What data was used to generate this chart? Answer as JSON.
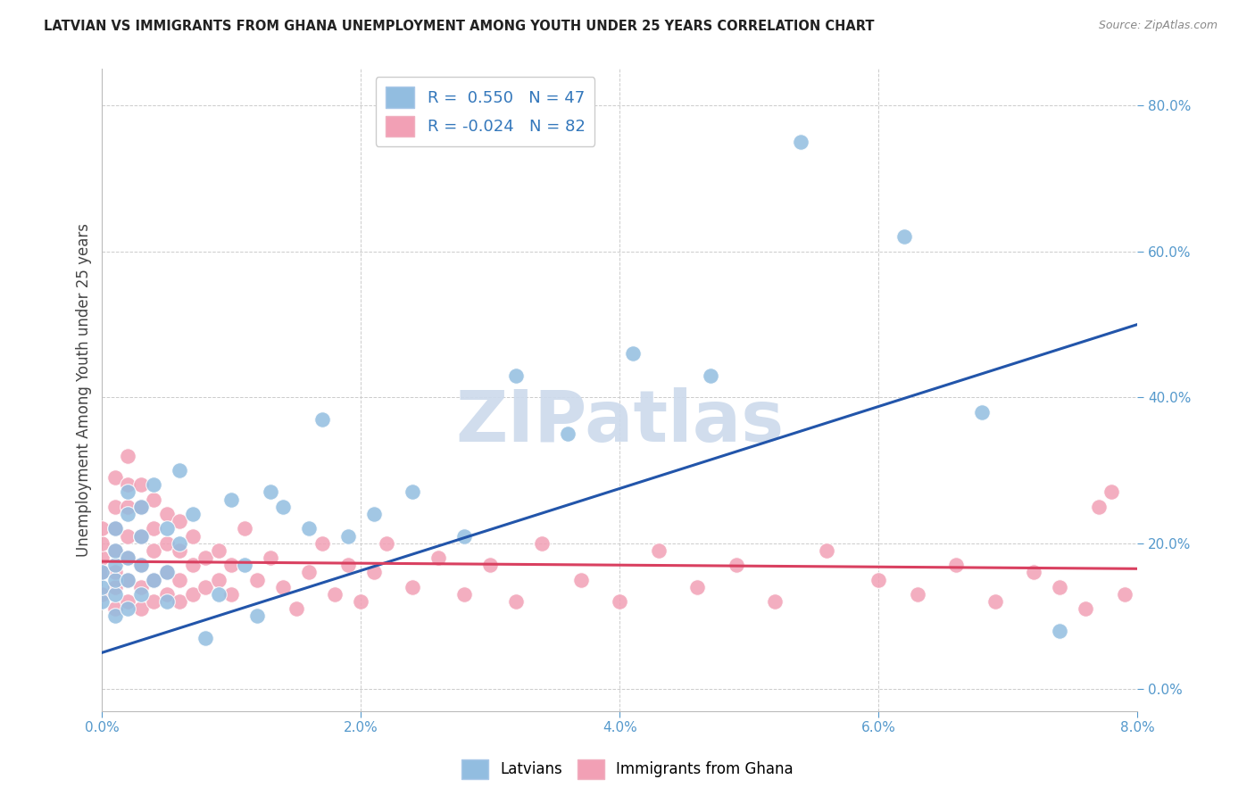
{
  "title": "LATVIAN VS IMMIGRANTS FROM GHANA UNEMPLOYMENT AMONG YOUTH UNDER 25 YEARS CORRELATION CHART",
  "source": "Source: ZipAtlas.com",
  "ylabel": "Unemployment Among Youth under 25 years",
  "legend_latvian": "Latvians",
  "legend_ghana": "Immigrants from Ghana",
  "R_latvian": 0.55,
  "N_latvian": 47,
  "R_ghana": -0.024,
  "N_ghana": 82,
  "color_latvian": "#92bde0",
  "color_ghana": "#f2a0b5",
  "color_line_latvian": "#2255aa",
  "color_line_ghana": "#d94060",
  "watermark_color": "#ccdaec",
  "xmin": 0.0,
  "xmax": 0.08,
  "ymin": -0.03,
  "ymax": 0.85,
  "xticks": [
    0.0,
    0.02,
    0.04,
    0.06,
    0.08
  ],
  "yticks": [
    0.0,
    0.2,
    0.4,
    0.6,
    0.8
  ],
  "grid_color": "#cccccc",
  "spine_color": "#bbbbbb",
  "tick_color": "#5599cc",
  "title_color": "#222222",
  "source_color": "#888888",
  "ylabel_color": "#444444",
  "line_ystart_latvian": 0.05,
  "line_yend_latvian": 0.5,
  "line_ystart_ghana": 0.175,
  "line_yend_ghana": 0.165,
  "latvian_x": [
    0.0,
    0.0,
    0.0,
    0.001,
    0.001,
    0.001,
    0.001,
    0.001,
    0.001,
    0.002,
    0.002,
    0.002,
    0.002,
    0.002,
    0.003,
    0.003,
    0.003,
    0.003,
    0.004,
    0.004,
    0.005,
    0.005,
    0.005,
    0.006,
    0.006,
    0.007,
    0.008,
    0.009,
    0.01,
    0.011,
    0.012,
    0.013,
    0.014,
    0.016,
    0.017,
    0.019,
    0.021,
    0.024,
    0.028,
    0.032,
    0.036,
    0.041,
    0.047,
    0.054,
    0.062,
    0.068,
    0.074
  ],
  "latvian_y": [
    0.12,
    0.14,
    0.16,
    0.1,
    0.13,
    0.15,
    0.17,
    0.19,
    0.22,
    0.11,
    0.15,
    0.18,
    0.24,
    0.27,
    0.13,
    0.17,
    0.21,
    0.25,
    0.15,
    0.28,
    0.12,
    0.16,
    0.22,
    0.2,
    0.3,
    0.24,
    0.07,
    0.13,
    0.26,
    0.17,
    0.1,
    0.27,
    0.25,
    0.22,
    0.37,
    0.21,
    0.24,
    0.27,
    0.21,
    0.43,
    0.35,
    0.46,
    0.43,
    0.75,
    0.62,
    0.38,
    0.08
  ],
  "ghana_x": [
    0.0,
    0.0,
    0.0,
    0.0,
    0.0,
    0.001,
    0.001,
    0.001,
    0.001,
    0.001,
    0.001,
    0.001,
    0.002,
    0.002,
    0.002,
    0.002,
    0.002,
    0.002,
    0.002,
    0.003,
    0.003,
    0.003,
    0.003,
    0.003,
    0.003,
    0.004,
    0.004,
    0.004,
    0.004,
    0.004,
    0.005,
    0.005,
    0.005,
    0.005,
    0.006,
    0.006,
    0.006,
    0.006,
    0.007,
    0.007,
    0.007,
    0.008,
    0.008,
    0.009,
    0.009,
    0.01,
    0.01,
    0.011,
    0.012,
    0.013,
    0.014,
    0.015,
    0.016,
    0.017,
    0.018,
    0.019,
    0.02,
    0.021,
    0.022,
    0.024,
    0.026,
    0.028,
    0.03,
    0.032,
    0.034,
    0.037,
    0.04,
    0.043,
    0.046,
    0.049,
    0.052,
    0.056,
    0.06,
    0.063,
    0.066,
    0.069,
    0.072,
    0.074,
    0.076,
    0.077,
    0.078,
    0.079
  ],
  "ghana_y": [
    0.13,
    0.16,
    0.18,
    0.2,
    0.22,
    0.11,
    0.14,
    0.16,
    0.19,
    0.22,
    0.25,
    0.29,
    0.12,
    0.15,
    0.18,
    0.21,
    0.25,
    0.28,
    0.32,
    0.11,
    0.14,
    0.17,
    0.21,
    0.25,
    0.28,
    0.12,
    0.15,
    0.19,
    0.22,
    0.26,
    0.13,
    0.16,
    0.2,
    0.24,
    0.12,
    0.15,
    0.19,
    0.23,
    0.13,
    0.17,
    0.21,
    0.14,
    0.18,
    0.15,
    0.19,
    0.13,
    0.17,
    0.22,
    0.15,
    0.18,
    0.14,
    0.11,
    0.16,
    0.2,
    0.13,
    0.17,
    0.12,
    0.16,
    0.2,
    0.14,
    0.18,
    0.13,
    0.17,
    0.12,
    0.2,
    0.15,
    0.12,
    0.19,
    0.14,
    0.17,
    0.12,
    0.19,
    0.15,
    0.13,
    0.17,
    0.12,
    0.16,
    0.14,
    0.11,
    0.25,
    0.27,
    0.13
  ]
}
